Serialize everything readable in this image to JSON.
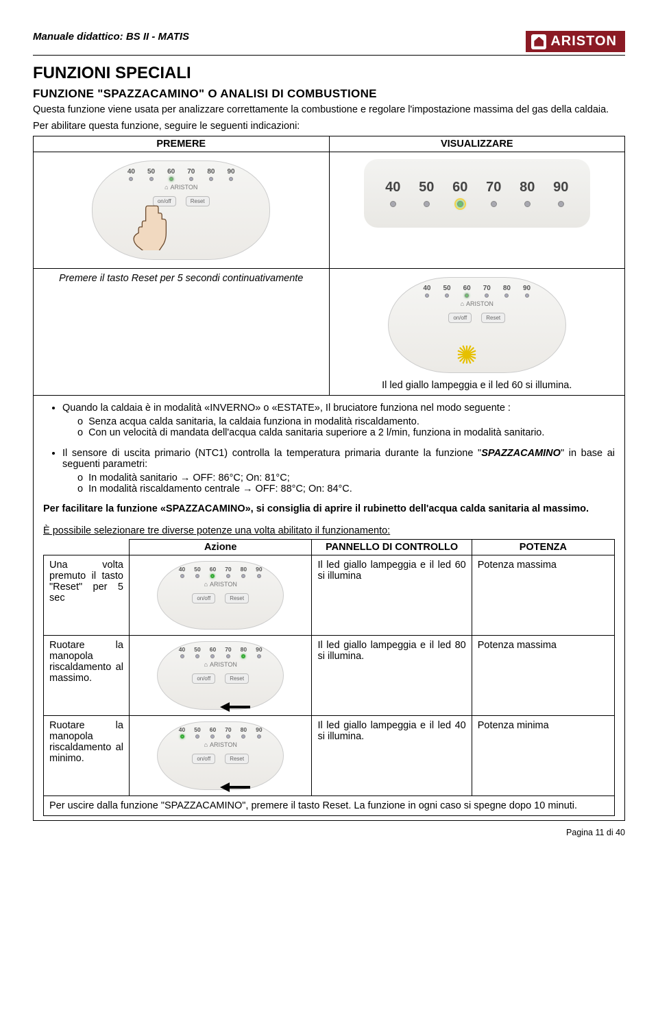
{
  "header": {
    "title": "Manuale didattico: BS II - MATIS",
    "brand": "ARISTON"
  },
  "h1": "FUNZIONI SPECIALI",
  "h2": "FUNZIONE \"SPAZZACAMINO\" O ANALISI DI COMBUSTIONE",
  "intro": "Questa funzione viene usata per analizzare correttamente la combustione e regolare l'impostazione massima del gas della caldaia.",
  "intro2": "Per abilitare questa funzione, seguire le seguenti indicazioni:",
  "t1": {
    "h1": "PREMERE",
    "h2": "VISUALIZZARE",
    "r2c1": "Premere il tasto Reset per 5 secondi continuativamente",
    "r2c2": "Il led giallo lampeggia e il led 60 si illumina."
  },
  "bul1": "Quando la caldaia è in modalità «INVERNO» o «ESTATE», Il bruciatore funziona nel modo seguente :",
  "bul1a": "Senza acqua calda sanitaria, la caldaia funziona in modalità riscaldamento.",
  "bul1b": "Con un velocità di mandata dell'acqua calda sanitaria superiore a 2 l/min, funziona in modalità sanitario.",
  "bul2a": "Il sensore di uscita primario (NTC1) controlla la temperatura primaria durante la funzione \"",
  "bul2b": "SPAZZACAMINO",
  "bul2c": "\" in base ai seguenti parametri:",
  "tri1": "In modalità sanitario → OFF: 86°C; On: 81°C;",
  "tri2": "In modalità riscaldamento centrale → OFF: 88°C; On: 84°C.",
  "facil": "Per facilitare la funzione «SPAZZACAMINO», si consiglia di aprire il rubinetto dell'acqua calda sanitaria al massimo.",
  "select": "È possibile selezionare tre diverse potenze una volta abilitato il funzionamento:",
  "t2": {
    "h1": "Azione",
    "h2": "PANNELLO DI CONTROLLO",
    "h3": "POTENZA",
    "rows": [
      {
        "a": "Una volta premuto il tasto \"Reset\" per 5 sec",
        "p": "Il led giallo lampeggia e il led 60 si illumina",
        "w": "Potenza massima",
        "hl": 60,
        "arrow": false
      },
      {
        "a": "Ruotare la manopola riscaldamento al massimo.",
        "p": "Il led giallo lampeggia e il led 80 si illumina.",
        "w": "Potenza massima",
        "hl": 80,
        "arrow": true
      },
      {
        "a": "Ruotare la manopola riscaldamento al minimo.",
        "p": "Il led giallo lampeggia e il led 40 si illumina.",
        "w": "Potenza minima",
        "hl": 40,
        "arrow": true
      }
    ]
  },
  "exit": "Per uscire dalla funzione \"SPAZZACAMINO\", premere il tasto Reset. La funzione in ogni caso si spegne dopo 10 minuti.",
  "footer": "Pagina 11 di 40",
  "leds": [
    "40",
    "50",
    "60",
    "70",
    "80",
    "90"
  ],
  "brand_small": "ARISTON",
  "btn1": "on/off",
  "btn2": "Reset",
  "colors": {
    "brand": "#8b1a24",
    "green": "#6ec36e",
    "yellow": "#f5d24a"
  }
}
